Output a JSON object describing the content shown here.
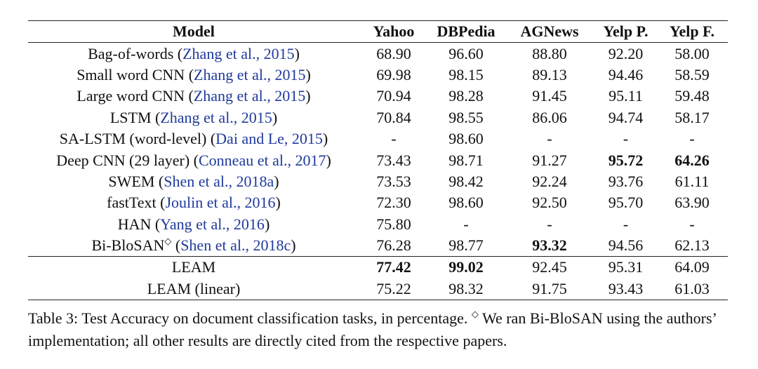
{
  "table": {
    "columns": [
      "Model",
      "Yahoo",
      "DBPedia",
      "AGNews",
      "Yelp P.",
      "Yelp F."
    ],
    "groups": [
      [
        {
          "parts": [
            {
              "text": "Bag-of-words ("
            },
            {
              "text": "Zhang et al., 2015",
              "link": true
            },
            {
              "text": ")"
            }
          ],
          "values": [
            "68.90",
            "96.60",
            "88.80",
            "92.20",
            "58.00"
          ]
        },
        {
          "parts": [
            {
              "text": "Small word CNN ("
            },
            {
              "text": "Zhang et al., 2015",
              "link": true
            },
            {
              "text": ")"
            }
          ],
          "values": [
            "69.98",
            "98.15",
            "89.13",
            "94.46",
            "58.59"
          ]
        },
        {
          "parts": [
            {
              "text": "Large word CNN ("
            },
            {
              "text": "Zhang et al., 2015",
              "link": true
            },
            {
              "text": ")"
            }
          ],
          "values": [
            "70.94",
            "98.28",
            "91.45",
            "95.11",
            "59.48"
          ]
        },
        {
          "parts": [
            {
              "text": "LSTM ("
            },
            {
              "text": "Zhang et al., 2015",
              "link": true
            },
            {
              "text": ")"
            }
          ],
          "values": [
            "70.84",
            "98.55",
            "86.06",
            "94.74",
            "58.17"
          ]
        },
        {
          "parts": [
            {
              "text": "SA-LSTM (word-level) ("
            },
            {
              "text": "Dai and Le, 2015",
              "link": true
            },
            {
              "text": ")"
            }
          ],
          "values": [
            "-",
            "98.60",
            "-",
            "-",
            "-"
          ]
        },
        {
          "parts": [
            {
              "text": "Deep CNN (29 layer) ("
            },
            {
              "text": "Conneau et al., 2017",
              "link": true
            },
            {
              "text": ")"
            }
          ],
          "values": [
            "73.43",
            "98.71",
            "91.27",
            "95.72",
            "64.26"
          ],
          "bold": [
            3,
            4
          ]
        },
        {
          "parts": [
            {
              "text": "SWEM ("
            },
            {
              "text": "Shen et al., 2018a",
              "link": true
            },
            {
              "text": ")"
            }
          ],
          "values": [
            "73.53",
            "98.42",
            "92.24",
            "93.76",
            "61.11"
          ]
        },
        {
          "parts": [
            {
              "text": "fastText ("
            },
            {
              "text": "Joulin et al., 2016",
              "link": true
            },
            {
              "text": ")"
            }
          ],
          "values": [
            "72.30",
            "98.60",
            "92.50",
            "95.70",
            "63.90"
          ]
        },
        {
          "parts": [
            {
              "text": "HAN ("
            },
            {
              "text": "Yang et al., 2016",
              "link": true
            },
            {
              "text": ")"
            }
          ],
          "values": [
            "75.80",
            "-",
            "-",
            "-",
            "-"
          ]
        },
        {
          "parts": [
            {
              "text": "Bi-BloSAN"
            },
            {
              "text": "◇",
              "sup": true
            },
            {
              "text": " ("
            },
            {
              "text": "Shen et al., 2018c",
              "link": true
            },
            {
              "text": ")"
            }
          ],
          "values": [
            "76.28",
            "98.77",
            "93.32",
            "94.56",
            "62.13"
          ],
          "bold": [
            2
          ]
        }
      ],
      [
        {
          "parts": [
            {
              "text": "LEAM"
            }
          ],
          "values": [
            "77.42",
            "99.02",
            "92.45",
            "95.31",
            "64.09"
          ],
          "bold": [
            0,
            1
          ]
        },
        {
          "parts": [
            {
              "text": "LEAM (linear)"
            }
          ],
          "values": [
            "75.22",
            "98.32",
            "91.75",
            "93.43",
            "61.03"
          ]
        }
      ]
    ],
    "caption": [
      {
        "text": "Table 3: Test Accuracy on document classification tasks, in percentage. "
      },
      {
        "text": "◇",
        "sup": true
      },
      {
        "text": " We ran Bi-BloSAN using the authors’ implementation; all other results are directly cited from the respective papers."
      }
    ]
  }
}
